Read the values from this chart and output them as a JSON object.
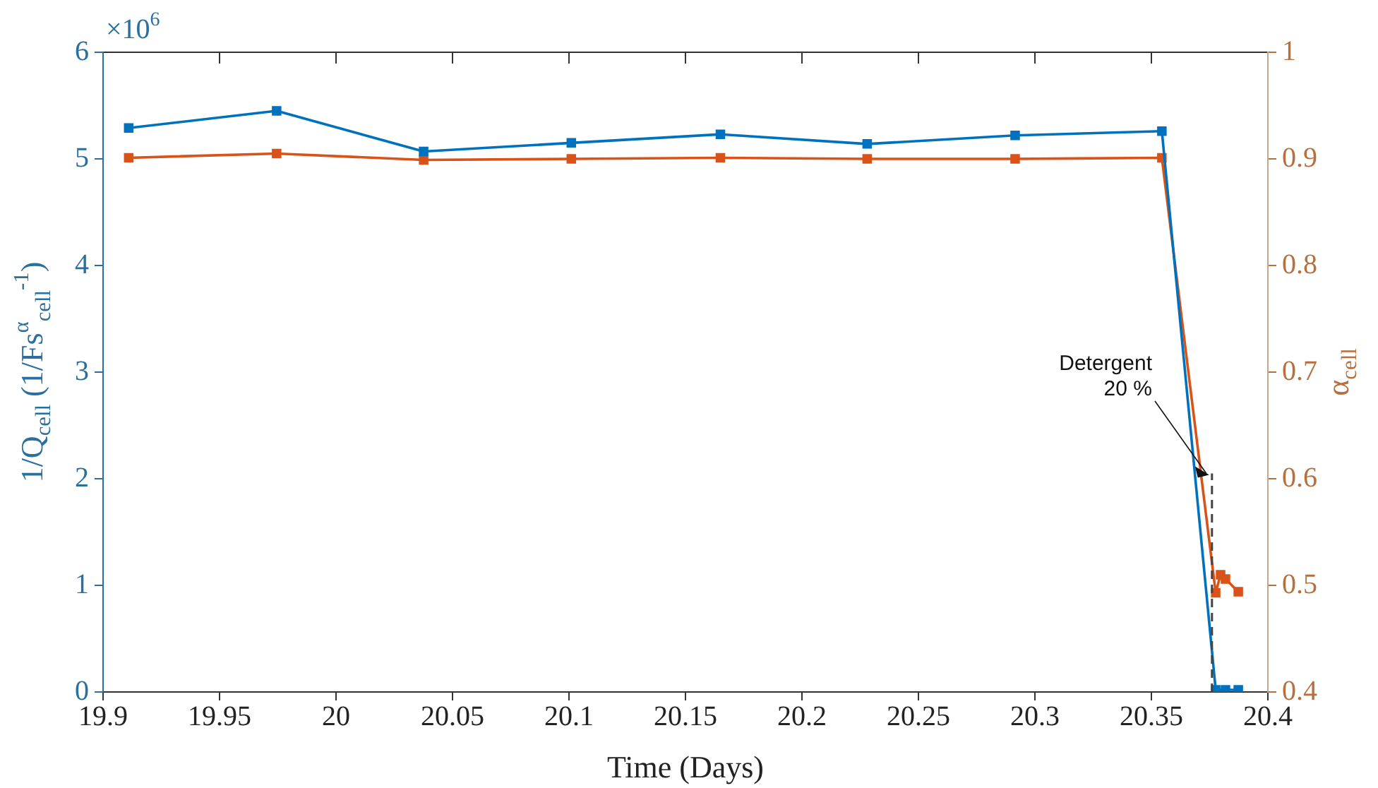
{
  "chart_data": {
    "type": "line",
    "xlabel": "Time (Days)",
    "ylabel": "1/Q$_{cell}$ (1/Fs$^{α}$$_{cell}$$^{-1}$)",
    "y2label": "α$_{cell}$",
    "xlim": [
      19.9,
      20.4
    ],
    "xticks": [
      19.9,
      19.95,
      20,
      20.05,
      20.1,
      20.15,
      20.2,
      20.25,
      20.3,
      20.35,
      20.4
    ],
    "ylim": [
      0,
      6
    ],
    "yticks": [
      0,
      1,
      2,
      3,
      4,
      5,
      6
    ],
    "y2lim": [
      0.4,
      1
    ],
    "y2ticks": [
      0.4,
      0.5,
      0.6,
      0.7,
      0.8,
      0.9,
      1
    ],
    "marker": "square",
    "line_style": "solid",
    "series": [
      {
        "color": "#0072bd",
        "x": [
          19.911,
          19.9745,
          20.0376,
          20.101,
          20.165,
          20.228,
          20.2915,
          20.3545,
          20.3776,
          20.3818,
          20.3873
        ],
        "values": [
          5.29,
          5.45,
          5.07,
          5.15,
          5.23,
          5.14,
          5.22,
          5.26,
          0.02,
          0.02,
          0.02
        ]
      },
      {
        "color": "#d95319",
        "axis": "y2",
        "x": [
          19.911,
          19.9745,
          20.0376,
          20.101,
          20.165,
          20.228,
          20.2915,
          20.3545,
          20.3776,
          20.3797,
          20.3818,
          20.3873
        ],
        "values": [
          0.901,
          0.905,
          0.899,
          0.9,
          0.901,
          0.9,
          0.9,
          0.901,
          0.493,
          0.51,
          0.506,
          0.494
        ]
      }
    ],
    "ref_lines": [
      {
        "axis": "x",
        "value": 20.376,
        "label": "Detergent\n20 %",
        "color": "#444444",
        "line_style": "dashed"
      }
    ],
    "annotations": [
      "×10$^{6}$"
    ]
  }
}
